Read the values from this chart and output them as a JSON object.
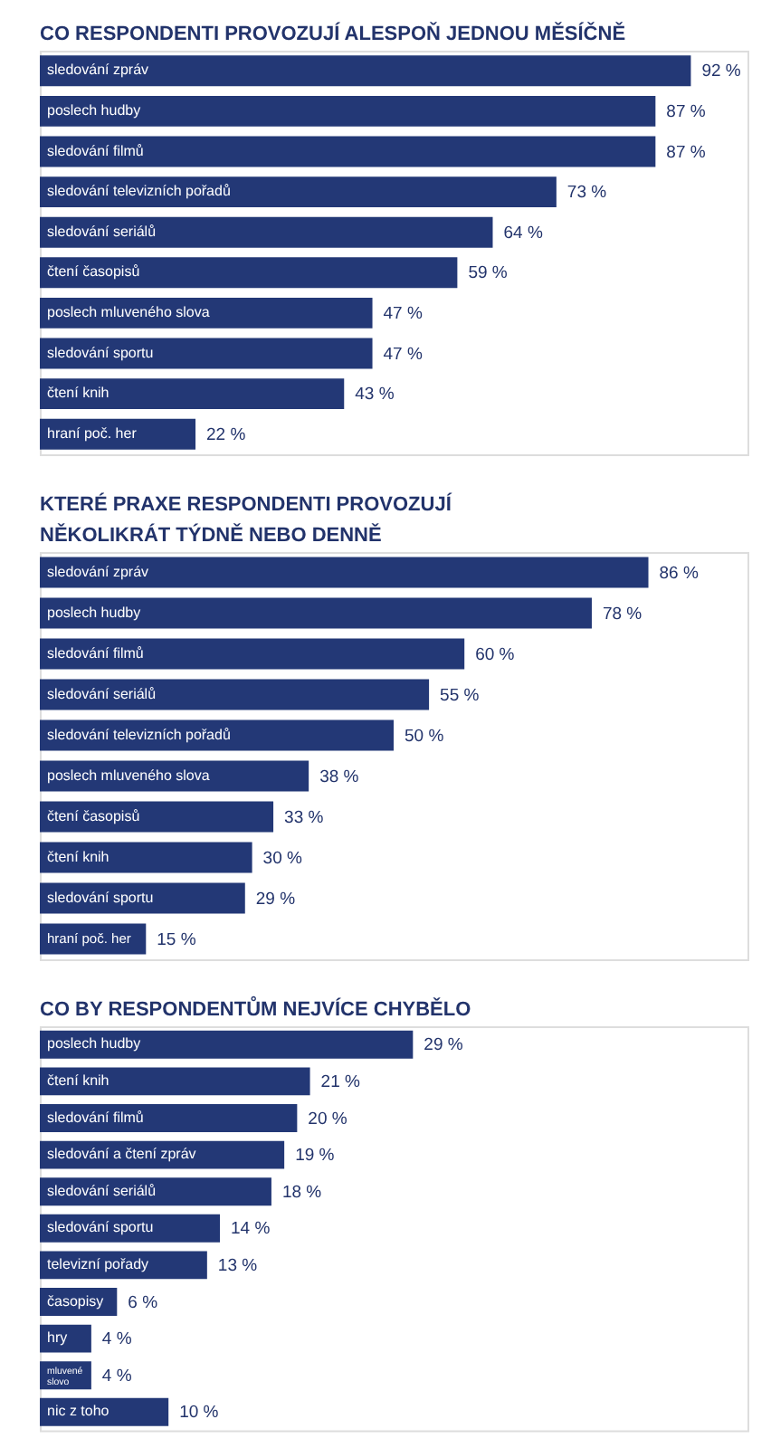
{
  "chart_data": [
    {
      "type": "bar",
      "orientation": "horizontal",
      "title": "CO RESPONDENTI PROVOZUJÍ ALESPOŇ JEDNOU MĚSÍČNĚ",
      "categories": [
        "sledování zpráv",
        "poslech hudby",
        "sledování filmů",
        "sledování televizních pořadů",
        "sledování seriálů",
        "čtení časopisů",
        "poslech mluveného slova",
        "sledování sportu",
        "čtení knih",
        "hraní poč. her"
      ],
      "values": [
        92,
        87,
        87,
        73,
        64,
        59,
        47,
        47,
        43,
        22
      ],
      "value_labels": [
        "92 %",
        "87 %",
        "87 %",
        "73 %",
        "64 %",
        "59 %",
        "47 %",
        "47 %",
        "43 %",
        "22 %"
      ],
      "color": "#233876",
      "xlim": [
        0,
        100
      ],
      "tick_labels": "y"
    },
    {
      "type": "bar",
      "orientation": "horizontal",
      "title": "KTERÉ PRAXE RESPONDENTI PROVOZUJÍ\nNĚKOLIKRÁT TÝDNĚ NEBO DENNĚ",
      "categories": [
        "sledování zpráv",
        "poslech hudby",
        "sledování filmů",
        "sledování seriálů",
        "sledování televizních pořadů",
        "poslech mluveného slova",
        "čtení časopisů",
        "čtení knih",
        "sledování sportu",
        "hraní poč. her"
      ],
      "values": [
        86,
        78,
        60,
        55,
        50,
        38,
        33,
        30,
        29,
        15
      ],
      "value_labels": [
        "86 %",
        "78 %",
        "60 %",
        "55 %",
        "50 %",
        "38 %",
        "33 %",
        "30 %",
        "29 %",
        "15 %"
      ],
      "color": "#233876",
      "xlim": [
        0,
        100
      ],
      "tick_labels": "y"
    },
    {
      "type": "bar",
      "orientation": "horizontal",
      "title": "CO BY RESPONDENTŮM NEJVÍCE CHYBĚLO",
      "categories": [
        "poslech hudby",
        "čtení knih",
        "sledování filmů",
        "sledování a čtení zpráv",
        "sledování seriálů",
        "sledování sportu",
        "televizní pořady",
        "časopisy",
        "hry",
        "mluvené\nslovo",
        "nic z toho"
      ],
      "values": [
        29,
        21,
        20,
        19,
        18,
        14,
        13,
        6,
        4,
        4,
        10
      ],
      "value_labels": [
        "29 %",
        "21 %",
        "20 %",
        "19 %",
        "18 %",
        "14 %",
        "13 %",
        "6 %",
        "4 %",
        "4 %",
        "10 %"
      ],
      "color": "#233876",
      "xlim": [
        0,
        55
      ],
      "tick_labels": "y"
    }
  ]
}
